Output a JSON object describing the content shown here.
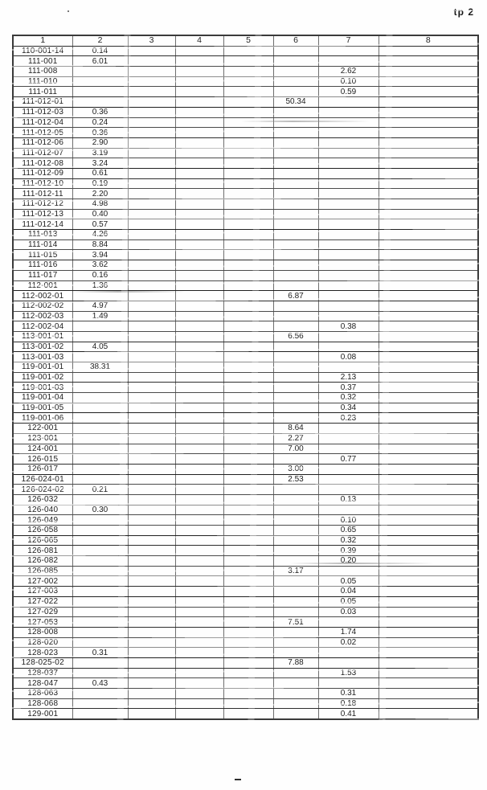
{
  "page": {
    "label": "tp 2"
  },
  "table": {
    "headers": [
      "1",
      "2",
      "3",
      "4",
      "5",
      "6",
      "7",
      "8"
    ],
    "rows": [
      [
        "110-001-14",
        "0.14",
        "",
        "",
        "",
        "",
        "",
        ""
      ],
      [
        "111-001",
        "6.01",
        "",
        "",
        "",
        "",
        "",
        ""
      ],
      [
        "111-008",
        "",
        "",
        "",
        "",
        "",
        "2.62",
        ""
      ],
      [
        "111-010",
        "",
        "",
        "",
        "",
        "",
        "0.10",
        ""
      ],
      [
        "111-011",
        "",
        "",
        "",
        "",
        "",
        "0.59",
        ""
      ],
      [
        "111-012-01",
        "",
        "",
        "",
        "",
        "50.34",
        "",
        ""
      ],
      [
        "111-012-03",
        "0.36",
        "",
        "",
        "",
        "",
        "",
        ""
      ],
      [
        "111-012-04",
        "0.24",
        "",
        "",
        "",
        "",
        "",
        ""
      ],
      [
        "111-012-05",
        "0.36",
        "",
        "",
        "",
        "",
        "",
        ""
      ],
      [
        "111-012-06",
        "2.90",
        "",
        "",
        "",
        "",
        "",
        ""
      ],
      [
        "111-012-07",
        "3.19",
        "",
        "",
        "",
        "",
        "",
        ""
      ],
      [
        "111-012-08",
        "3.24",
        "",
        "",
        "",
        "",
        "",
        ""
      ],
      [
        "111-012-09",
        "0.61",
        "",
        "",
        "",
        "",
        "",
        ""
      ],
      [
        "111-012-10",
        "0.19",
        "",
        "",
        "",
        "",
        "",
        ""
      ],
      [
        "111-012-11",
        "2.20",
        "",
        "",
        "",
        "",
        "",
        ""
      ],
      [
        "111-012-12",
        "4.98",
        "",
        "",
        "",
        "",
        "",
        ""
      ],
      [
        "111-012-13",
        "0.40",
        "",
        "",
        "",
        "",
        "",
        ""
      ],
      [
        "111-012-14",
        "0.57",
        "",
        "",
        "",
        "",
        "",
        ""
      ],
      [
        "111-013",
        "4.26",
        "",
        "",
        "",
        "",
        "",
        ""
      ],
      [
        "111-014",
        "8.84",
        "",
        "",
        "",
        "",
        "",
        ""
      ],
      [
        "111-015",
        "3.94",
        "",
        "",
        "",
        "",
        "",
        ""
      ],
      [
        "111-016",
        "3.62",
        "",
        "",
        "",
        "",
        "",
        ""
      ],
      [
        "111-017",
        "0.16",
        "",
        "",
        "",
        "",
        "",
        ""
      ],
      [
        "112-001",
        "1.36",
        "",
        "",
        "",
        "",
        "",
        ""
      ],
      [
        "112-002-01",
        "",
        "",
        "",
        "",
        "6.87",
        "",
        ""
      ],
      [
        "112-002-02",
        "4.97",
        "",
        "",
        "",
        "",
        "",
        ""
      ],
      [
        "112-002-03",
        "1.49",
        "",
        "",
        "",
        "",
        "",
        ""
      ],
      [
        "112-002-04",
        "",
        "",
        "",
        "",
        "",
        "0.38",
        ""
      ],
      [
        "113-001-01",
        "",
        "",
        "",
        "",
        "6.56",
        "",
        ""
      ],
      [
        "113-001-02",
        "4.05",
        "",
        "",
        "",
        "",
        "",
        ""
      ],
      [
        "113-001-03",
        "",
        "",
        "",
        "",
        "",
        "0.08",
        ""
      ],
      [
        "119-001-01",
        "38.31",
        "",
        "",
        "",
        "",
        "",
        ""
      ],
      [
        "119-001-02",
        "",
        "",
        "",
        "",
        "",
        "2.13",
        ""
      ],
      [
        "119-001-03",
        "",
        "",
        "",
        "",
        "",
        "0.37",
        ""
      ],
      [
        "119-001-04",
        "",
        "",
        "",
        "",
        "",
        "0.32",
        ""
      ],
      [
        "119-001-05",
        "",
        "",
        "",
        "",
        "",
        "0.34",
        ""
      ],
      [
        "119-001-06",
        "",
        "",
        "",
        "",
        "",
        "0.23",
        ""
      ],
      [
        "122-001",
        "",
        "",
        "",
        "",
        "8.64",
        "",
        ""
      ],
      [
        "123-001",
        "",
        "",
        "",
        "",
        "2.27",
        "",
        ""
      ],
      [
        "124-001",
        "",
        "",
        "",
        "",
        "7.00",
        "",
        ""
      ],
      [
        "126-015",
        "",
        "",
        "",
        "",
        "",
        "0.77",
        ""
      ],
      [
        "126-017",
        "",
        "",
        "",
        "",
        "3.00",
        "",
        ""
      ],
      [
        "126-024-01",
        "",
        "",
        "",
        "",
        "2.53",
        "",
        ""
      ],
      [
        "126-024-02",
        "0.21",
        "",
        "",
        "",
        "",
        "",
        ""
      ],
      [
        "126-032",
        "",
        "",
        "",
        "",
        "",
        "0.13",
        ""
      ],
      [
        "126-040",
        "0.30",
        "",
        "",
        "",
        "",
        "",
        ""
      ],
      [
        "126-049",
        "",
        "",
        "",
        "",
        "",
        "0.10",
        ""
      ],
      [
        "126-058",
        "",
        "",
        "",
        "",
        "",
        "0.65",
        ""
      ],
      [
        "126-065",
        "",
        "",
        "",
        "",
        "",
        "0.32",
        ""
      ],
      [
        "126-081",
        "",
        "",
        "",
        "",
        "",
        "0.39",
        ""
      ],
      [
        "126-082",
        "",
        "",
        "",
        "",
        "",
        "0.20",
        ""
      ],
      [
        "126-085",
        "",
        "",
        "",
        "",
        "3.17",
        "",
        ""
      ],
      [
        "127-002",
        "",
        "",
        "",
        "",
        "",
        "0.05",
        ""
      ],
      [
        "127-003",
        "",
        "",
        "",
        "",
        "",
        "0.04",
        ""
      ],
      [
        "127-022",
        "",
        "",
        "",
        "",
        "",
        "0.05",
        ""
      ],
      [
        "127-029",
        "",
        "",
        "",
        "",
        "",
        "0.03",
        ""
      ],
      [
        "127-053",
        "",
        "",
        "",
        "",
        "7.51",
        "",
        ""
      ],
      [
        "128-008",
        "",
        "",
        "",
        "",
        "",
        "1.74",
        ""
      ],
      [
        "128-020",
        "",
        "",
        "",
        "",
        "",
        "0.02",
        ""
      ],
      [
        "128-023",
        "0.31",
        "",
        "",
        "",
        "",
        "",
        ""
      ],
      [
        "128-025-02",
        "",
        "",
        "",
        "",
        "7.88",
        "",
        ""
      ],
      [
        "128-037",
        "",
        "",
        "",
        "",
        "",
        "1.53",
        ""
      ],
      [
        "128-047",
        "0.43",
        "",
        "",
        "",
        "",
        "",
        ""
      ],
      [
        "128-063",
        "",
        "",
        "",
        "",
        "",
        "0.31",
        ""
      ],
      [
        "128-068",
        "",
        "",
        "",
        "",
        "",
        "0.18",
        ""
      ],
      [
        "129-001",
        "",
        "",
        "",
        "",
        "",
        "0.41",
        ""
      ]
    ]
  }
}
